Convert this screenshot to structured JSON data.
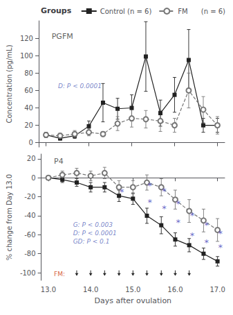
{
  "chart_data": [
    {
      "type": "line",
      "legend": "top",
      "legend_title": "Groups",
      "grid": false,
      "tick_labels": "y",
      "ylabel": "Concentration (pg/mL)",
      "x": [
        13.0,
        13.33,
        13.67,
        14.0,
        14.33,
        14.67,
        15.0,
        15.33,
        15.67,
        16.0,
        16.33,
        16.67,
        17.0
      ],
      "xlim": [
        12.83,
        17.17
      ],
      "xticks": [
        13.0,
        14.0,
        15.0,
        16.0,
        17.0
      ],
      "ylim": [
        -5,
        140
      ],
      "yticks": [
        0,
        20,
        40,
        60,
        80,
        100,
        120
      ],
      "series": [
        {
          "name": "Control (n = 6)",
          "color": "#222222",
          "marker": "square",
          "line_style": "solid",
          "values": [
            9,
            5,
            8,
            19,
            46,
            39,
            40,
            99,
            34,
            55,
            95,
            20,
            20
          ],
          "errors": [
            3,
            2,
            3,
            6,
            22,
            12,
            15,
            40,
            15,
            20,
            35,
            8,
            8
          ]
        },
        {
          "name": "FM      (n = 6)",
          "color": "#777777",
          "marker": "open_circle",
          "line_style": "dashed",
          "values": [
            9,
            8,
            10,
            12,
            10,
            22,
            28,
            27,
            25,
            20,
            60,
            38,
            20
          ],
          "errors": [
            3,
            3,
            4,
            4,
            3,
            8,
            10,
            10,
            12,
            8,
            20,
            15,
            10
          ]
        }
      ],
      "annotations": [
        {
          "text": "PGFM",
          "x": 13.1,
          "y": 122
        },
        {
          "text": "D: P < 0.0001",
          "x": 13.25,
          "y": 65,
          "color": "#5566bb"
        }
      ]
    },
    {
      "type": "line",
      "grid": false,
      "xlabel": "Days after ovulation",
      "ylabel": "% change from Day 13.0",
      "x": [
        13.0,
        13.33,
        13.67,
        14.0,
        14.33,
        14.67,
        15.0,
        15.33,
        15.67,
        16.0,
        16.33,
        16.67,
        17.0
      ],
      "xlim": [
        12.83,
        17.17
      ],
      "xticks": [
        {
          "value": 13.0,
          "label": "13.0"
        },
        {
          "value": 14.0,
          "label": "14.0"
        },
        {
          "value": 15.0,
          "label": "15.0"
        },
        {
          "value": 16.0,
          "label": "16.0"
        },
        {
          "value": 17.0,
          "label": "17.0"
        }
      ],
      "ylim": [
        -108,
        25
      ],
      "yticks": [
        -100,
        -80,
        -60,
        -40,
        -20,
        0,
        20
      ],
      "series": [
        {
          "name": "Control (n = 6)",
          "color": "#222222",
          "marker": "square",
          "line_style": "solid",
          "values": [
            0,
            -2,
            -5,
            -10,
            -10,
            -19,
            -22,
            -40,
            -50,
            -65,
            -71,
            -80,
            -88
          ],
          "errors": [
            2,
            3,
            4,
            5,
            5,
            6,
            6,
            8,
            9,
            7,
            7,
            6,
            5
          ]
        },
        {
          "name": "FM      (n = 6)",
          "color": "#777777",
          "marker": "open_circle",
          "line_style": "dashed",
          "values": [
            0,
            3,
            5,
            2,
            5,
            -10,
            -10,
            -5,
            -10,
            -23,
            -35,
            -45,
            -55
          ],
          "errors": [
            2,
            4,
            5,
            5,
            6,
            7,
            7,
            8,
            9,
            10,
            12,
            12,
            12
          ]
        }
      ],
      "annotations": [
        {
          "text": "P4",
          "x": 13.1,
          "y": 17
        },
        {
          "text": "G: P < 0.003\nD: P < 0.0001\nGD: P < 0.1",
          "x": 13.55,
          "y": -58,
          "color": "#5566bb"
        },
        {
          "text": "FM:",
          "x": 13.1,
          "y": -101.5,
          "color": "#cc3300"
        },
        {
          "text": "*",
          "x": 14.67,
          "y": -15,
          "color": "#4444bb"
        },
        {
          "text": "*",
          "x": 15.33,
          "y": -26,
          "color": "#4444bb"
        },
        {
          "text": "*",
          "x": 15.67,
          "y": -32,
          "color": "#4444bb"
        },
        {
          "text": "*",
          "x": 16.0,
          "y": -47,
          "color": "#4444bb"
        },
        {
          "text": "*",
          "x": 16.33,
          "y": -61,
          "color": "#4444bb"
        },
        {
          "text": "*",
          "x": 16.67,
          "y": -68,
          "color": "#4444bb"
        },
        {
          "text": "*",
          "x": 17.0,
          "y": -73,
          "color": "#4444bb"
        },
        {
          "text": "*",
          "x": 15.33,
          "y": -8,
          "color": "#4444bb"
        },
        {
          "text": "*",
          "x": 15.67,
          "y": -14,
          "color": "#4444bb"
        },
        {
          "text": "*",
          "x": 16.0,
          "y": -27,
          "color": "#4444bb"
        },
        {
          "text": "*",
          "x": 16.33,
          "y": -40,
          "color": "#4444bb"
        },
        {
          "text": "*",
          "x": 16.67,
          "y": -50,
          "color": "#4444bb"
        },
        {
          "text": "*",
          "x": 17.0,
          "y": -59,
          "color": "#4444bb"
        }
      ],
      "arrows": {
        "x": [
          13.67,
          14.0,
          14.33,
          14.67,
          15.0,
          15.33,
          15.67,
          16.0,
          16.33
        ],
        "y": [
          -99,
          -103
        ]
      }
    }
  ]
}
